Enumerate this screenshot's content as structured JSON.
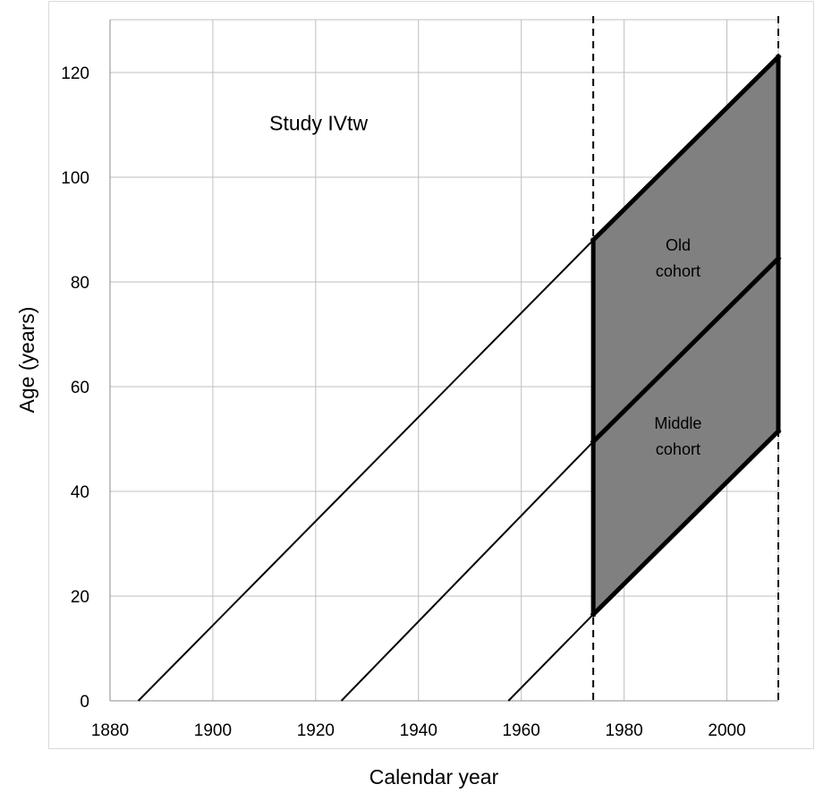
{
  "chart_data": {
    "type": "line",
    "title": "",
    "xlabel": "Calendar year",
    "ylabel": "Age (years)",
    "xlim": [
      1880,
      2010
    ],
    "ylim": [
      0,
      130
    ],
    "x_ticks": [
      1880,
      1900,
      1920,
      1940,
      1960,
      1980,
      2000
    ],
    "y_ticks": [
      0,
      20,
      40,
      60,
      80,
      100,
      120
    ],
    "grid": true,
    "colors": {
      "grid": "#bfbfbf",
      "line": "#000000",
      "fill": "#808080"
    },
    "annotations": [
      {
        "text": "Study IVtw",
        "x": 1911,
        "y": 109
      },
      {
        "text": "Old",
        "x": 1990.5,
        "y": 86
      },
      {
        "text": "cohort",
        "x": 1990.5,
        "y": 81
      },
      {
        "text": "Middle",
        "x": 1990.5,
        "y": 52
      },
      {
        "text": "cohort",
        "x": 1990.5,
        "y": 47
      }
    ],
    "vertical_dashed_lines": [
      1974,
      2010
    ],
    "shaded_region": [
      [
        1974,
        88
      ],
      [
        2010,
        123
      ],
      [
        2010,
        51.5
      ],
      [
        1974,
        16.5
      ]
    ],
    "thin_lines": [
      {
        "x": [
          1885.5,
          1974
        ],
        "y": [
          0,
          88
        ]
      },
      {
        "x": [
          1925,
          1974
        ],
        "y": [
          0,
          49.5
        ]
      },
      {
        "x": [
          1957.5,
          1974
        ],
        "y": [
          0,
          16.5
        ]
      }
    ],
    "thick_lines": [
      {
        "x": [
          1974,
          2010
        ],
        "y": [
          88,
          123
        ]
      },
      {
        "x": [
          1974,
          2010
        ],
        "y": [
          49.5,
          84.5
        ]
      },
      {
        "x": [
          1974,
          2010
        ],
        "y": [
          16.5,
          51.5
        ]
      },
      {
        "x": [
          1974,
          1974
        ],
        "y": [
          16.5,
          88
        ]
      },
      {
        "x": [
          2010,
          2010
        ],
        "y": [
          51.5,
          123
        ]
      }
    ]
  }
}
